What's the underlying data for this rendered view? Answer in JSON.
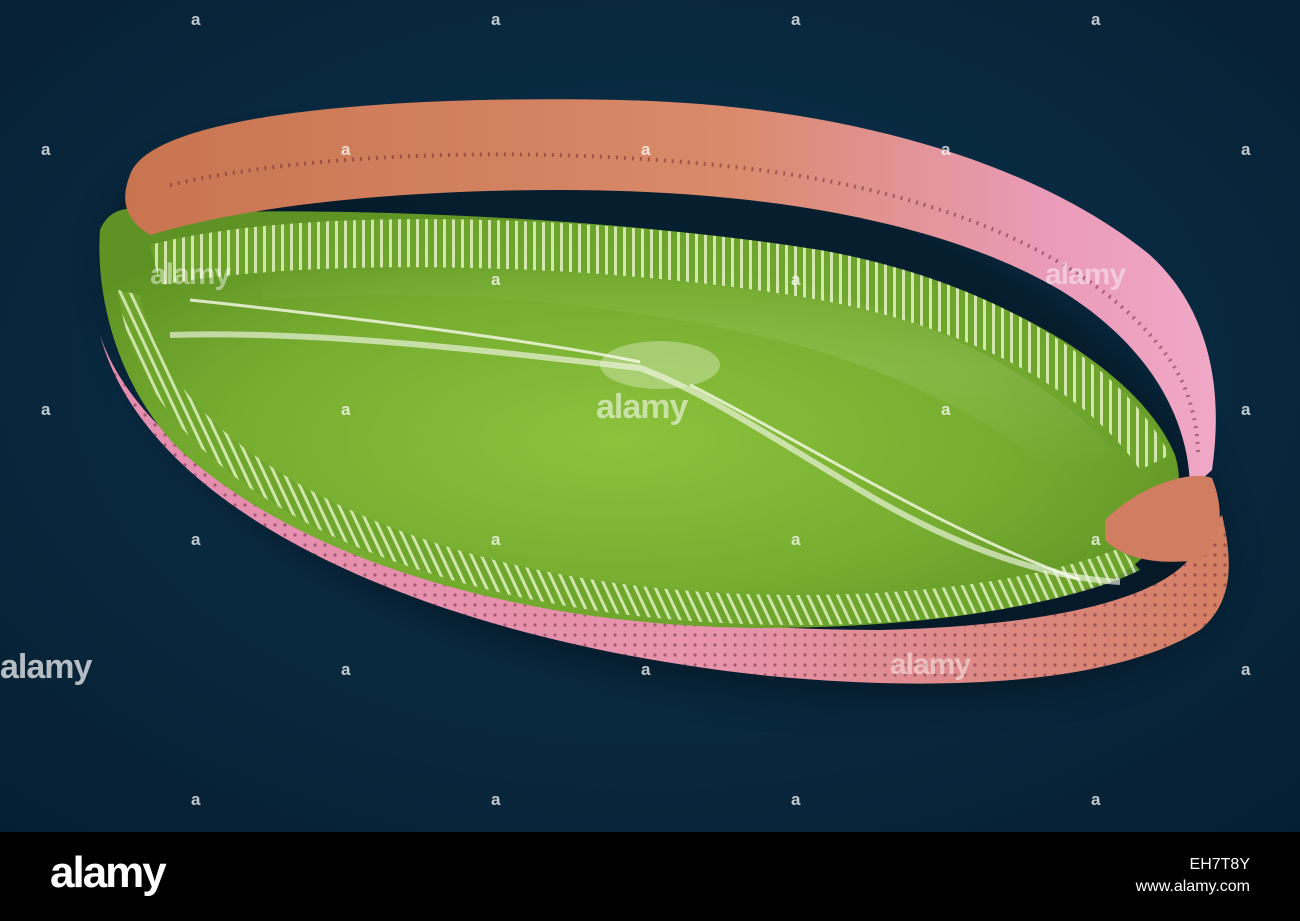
{
  "photo": {
    "subject": "diatom-sem",
    "colors": {
      "background": "#07263d",
      "valve_green": "#7fb33a",
      "girdle_pink": "#e691ad",
      "girdle_orange": "#cf7a56",
      "footer": "#000000"
    }
  },
  "watermarks": {
    "mark": "alamy",
    "dot_mark": "a"
  },
  "footer": {
    "logo": "alamy",
    "image_id": "EH7T8Y",
    "website": "www.alamy.com"
  }
}
